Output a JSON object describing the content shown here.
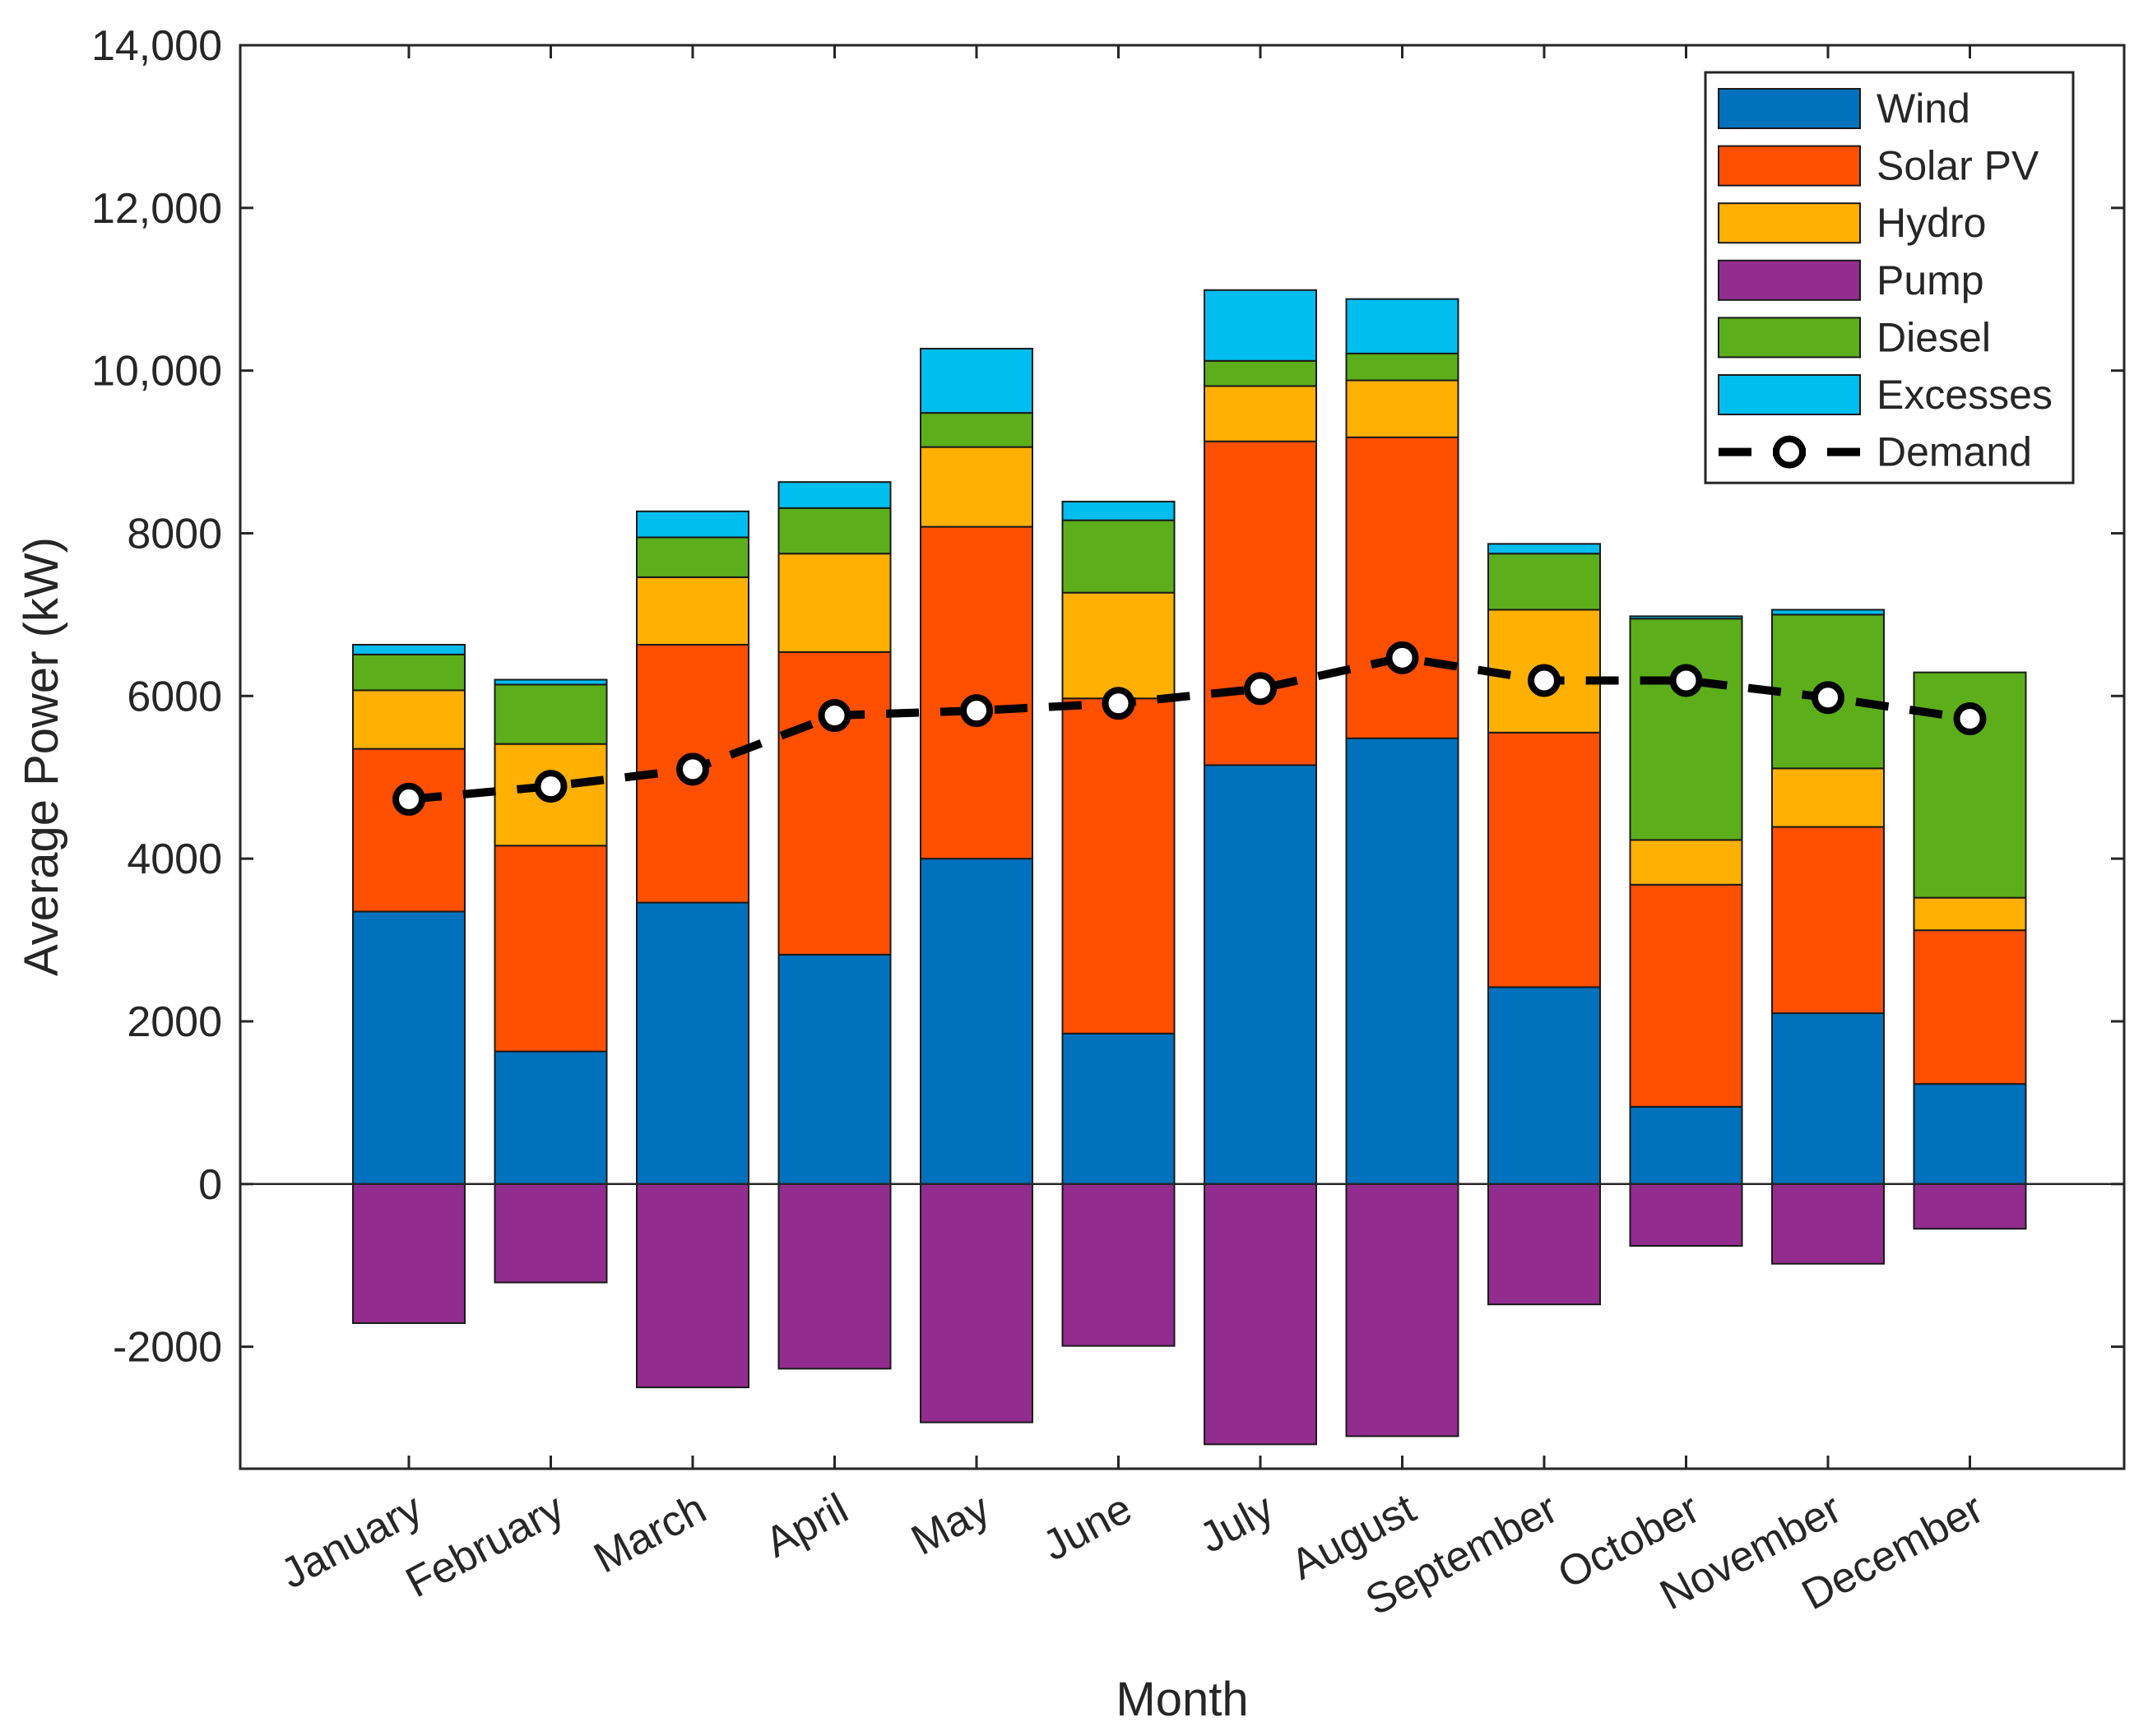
{
  "chart_data": {
    "type": "bar",
    "stacked": true,
    "xlabel": "Month",
    "ylabel": "Average Power (kW)",
    "ylim": [
      -3500,
      14000
    ],
    "yticks": [
      -2000,
      0,
      2000,
      4000,
      6000,
      8000,
      10000,
      12000,
      14000
    ],
    "ytick_labels": [
      "-2000",
      "0",
      "2000",
      "4000",
      "6000",
      "8000",
      "10,000",
      "12,000",
      "14,000"
    ],
    "grid": false,
    "legend_position": "top-right",
    "categories": [
      "January",
      "February",
      "March",
      "April",
      "May",
      "June",
      "July",
      "August",
      "September",
      "October",
      "November",
      "December"
    ],
    "series": [
      {
        "name": "Wind",
        "color": "#0072BD",
        "values": [
          3350,
          1630,
          3460,
          2820,
          4000,
          1850,
          5150,
          5480,
          2420,
          950,
          2100,
          1230
        ]
      },
      {
        "name": "Solar PV",
        "color": "#FF4F00",
        "values": [
          2000,
          2530,
          3170,
          3720,
          4080,
          4120,
          3980,
          3700,
          3130,
          2730,
          2290,
          1890
        ]
      },
      {
        "name": "Hydro",
        "color": "#FFB000",
        "values": [
          720,
          1250,
          830,
          1210,
          980,
          1300,
          680,
          700,
          1510,
          550,
          720,
          400
        ]
      },
      {
        "name": "Pump",
        "color": "#932C8F",
        "values": [
          -1710,
          -1210,
          -2500,
          -2270,
          -2930,
          -1990,
          -3200,
          -3100,
          -1480,
          -760,
          -980,
          -550
        ]
      },
      {
        "name": "Diesel",
        "color": "#5CAE1A",
        "values": [
          440,
          730,
          490,
          560,
          420,
          890,
          310,
          330,
          690,
          2720,
          1890,
          2770
        ]
      },
      {
        "name": "Excesses",
        "color": "#00BEEF",
        "values": [
          120,
          60,
          320,
          320,
          790,
          230,
          870,
          670,
          120,
          30,
          60,
          0
        ]
      }
    ],
    "line_series": {
      "name": "Demand",
      "color": "#000000",
      "style": "dashed",
      "marker": "circle",
      "values": [
        4730,
        4890,
        5100,
        5760,
        5820,
        5910,
        6090,
        6470,
        6190,
        6190,
        5980,
        5720
      ]
    }
  }
}
